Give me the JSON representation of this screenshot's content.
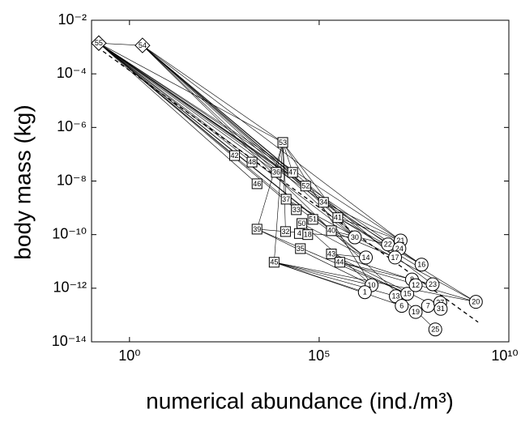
{
  "chart_data": {
    "type": "foodweb-scatter",
    "x_label": "numerical abundance (ind./m³)",
    "y_label": "body mass (kg)",
    "log_x": true,
    "log_y": true,
    "xlim": [
      0.1,
      10000000000.0
    ],
    "ylim": [
      1e-14,
      0.01
    ],
    "xticks": [
      {
        "value": 1,
        "label": "10⁰"
      },
      {
        "value": 100000,
        "label": "10⁵"
      },
      {
        "value": 10000000000.0,
        "label": "10¹⁰"
      }
    ],
    "yticks": [
      {
        "value": 1e-14,
        "label": "10⁻¹⁴"
      },
      {
        "value": 1e-12,
        "label": "10⁻¹²"
      },
      {
        "value": 1e-10,
        "label": "10⁻¹⁰"
      },
      {
        "value": 1e-08,
        "label": "10⁻⁸"
      },
      {
        "value": 1e-06,
        "label": "10⁻⁶"
      },
      {
        "value": 0.0001,
        "label": "10⁻⁴"
      },
      {
        "value": 0.01,
        "label": "10⁻²"
      }
    ],
    "color": "#000000",
    "nodes": [
      {
        "label": "55",
        "shape": "diamond",
        "x": 0.155,
        "y": 0.0014
      },
      {
        "label": "54",
        "shape": "diamond",
        "x": 2.2,
        "y": 0.00115
      },
      {
        "label": "53",
        "shape": "square",
        "x": 11000,
        "y": 2.75e-07
      },
      {
        "label": "42",
        "shape": "square",
        "x": 590,
        "y": 8.9e-08
      },
      {
        "label": "48",
        "shape": "square",
        "x": 1700,
        "y": 5.1e-08
      },
      {
        "label": "36",
        "shape": "square",
        "x": 7400,
        "y": 2.1e-08
      },
      {
        "label": "47",
        "shape": "square",
        "x": 20000,
        "y": 2.1e-08
      },
      {
        "label": "46",
        "shape": "square",
        "x": 2300,
        "y": 7.9e-09
      },
      {
        "label": "52",
        "shape": "square",
        "x": 44000,
        "y": 6.5e-09
      },
      {
        "label": "37",
        "shape": "square",
        "x": 13500,
        "y": 2.1e-09
      },
      {
        "label": "34",
        "shape": "square",
        "x": 130000,
        "y": 1.6e-09
      },
      {
        "label": "33",
        "shape": "square",
        "x": 25000,
        "y": 8.5e-10
      },
      {
        "label": "50",
        "shape": "square",
        "x": 35000,
        "y": 2.6e-10
      },
      {
        "label": "51",
        "shape": "square",
        "x": 68000,
        "y": 3.7e-10
      },
      {
        "label": "41",
        "shape": "square",
        "x": 310000,
        "y": 4.3e-10
      },
      {
        "label": "39",
        "shape": "square",
        "x": 2300,
        "y": 1.6e-10
      },
      {
        "label": "32",
        "shape": "square",
        "x": 13000,
        "y": 1.3e-10
      },
      {
        "label": "4",
        "shape": "square",
        "x": 30000,
        "y": 1.1e-10
      },
      {
        "label": "18",
        "shape": "square",
        "x": 50000,
        "y": 1e-10
      },
      {
        "label": "40",
        "shape": "square",
        "x": 210000,
        "y": 1.4e-10
      },
      {
        "label": "35",
        "shape": "square",
        "x": 32000,
        "y": 3e-11
      },
      {
        "label": "43",
        "shape": "square",
        "x": 210000,
        "y": 1.9e-11
      },
      {
        "label": "44",
        "shape": "square",
        "x": 350000,
        "y": 9.3e-12
      },
      {
        "label": "45",
        "shape": "square",
        "x": 6500,
        "y": 9.3e-12
      },
      {
        "label": "30",
        "shape": "circle",
        "x": 870000,
        "y": 7.9e-11
      },
      {
        "label": "22",
        "shape": "circle",
        "x": 6500000,
        "y": 4.3e-11
      },
      {
        "label": "21",
        "shape": "circle",
        "x": 14000000,
        "y": 6e-11
      },
      {
        "label": "24",
        "shape": "circle",
        "x": 13000000,
        "y": 3e-11
      },
      {
        "label": "17",
        "shape": "circle",
        "x": 10000000,
        "y": 1.4e-11
      },
      {
        "label": "14",
        "shape": "circle",
        "x": 1700000,
        "y": 1.4e-11
      },
      {
        "label": "16",
        "shape": "circle",
        "x": 50000000,
        "y": 7.6e-12
      },
      {
        "label": "10",
        "shape": "circle",
        "x": 2400000,
        "y": 1.3e-12
      },
      {
        "label": "1",
        "shape": "circle",
        "x": 1600000,
        "y": 7.1e-13
      },
      {
        "label": "23",
        "shape": "circle",
        "x": 98000000,
        "y": 1.4e-12
      },
      {
        "label": "20",
        "shape": "circle",
        "x": 1350000000,
        "y": 3.1e-13
      },
      {
        "label": "13",
        "shape": "circle",
        "x": 10500000,
        "y": 5e-13
      },
      {
        "label": "15",
        "shape": "circle",
        "x": 21000000,
        "y": 6.2e-13
      },
      {
        "label": "8",
        "shape": "circle",
        "x": 28000000,
        "y": 2.1e-12
      },
      {
        "label": "12",
        "shape": "circle",
        "x": 35000000,
        "y": 1.3e-12
      },
      {
        "label": "6",
        "shape": "circle",
        "x": 15000000,
        "y": 2.2e-13
      },
      {
        "label": "7",
        "shape": "circle",
        "x": 74000000,
        "y": 2.2e-13
      },
      {
        "label": "27",
        "shape": "circle",
        "x": 155000000,
        "y": 2.9e-13
      },
      {
        "label": "31",
        "shape": "circle",
        "x": 160000000,
        "y": 1.7e-13
      },
      {
        "label": "19",
        "shape": "circle",
        "x": 35000000,
        "y": 1.3e-13
      },
      {
        "label": "25",
        "shape": "circle",
        "x": 115000000,
        "y": 2.9e-14
      }
    ],
    "links": [
      [
        0,
        1
      ],
      [
        0,
        2
      ],
      [
        0,
        3
      ],
      [
        0,
        4
      ],
      [
        0,
        5
      ],
      [
        0,
        6
      ],
      [
        0,
        7
      ],
      [
        0,
        8
      ],
      [
        0,
        9
      ],
      [
        0,
        10
      ],
      [
        0,
        11
      ],
      [
        0,
        19
      ],
      [
        0,
        24
      ],
      [
        0,
        25
      ],
      [
        0,
        26
      ],
      [
        0,
        29
      ],
      [
        0,
        30
      ],
      [
        1,
        2
      ],
      [
        1,
        5
      ],
      [
        1,
        6
      ],
      [
        1,
        8
      ],
      [
        1,
        10
      ],
      [
        1,
        14
      ],
      [
        1,
        19
      ],
      [
        1,
        24
      ],
      [
        1,
        26
      ],
      [
        1,
        28
      ],
      [
        2,
        5
      ],
      [
        2,
        6
      ],
      [
        2,
        9
      ],
      [
        2,
        15
      ],
      [
        2,
        16
      ],
      [
        2,
        23
      ],
      [
        2,
        24
      ],
      [
        2,
        31
      ],
      [
        15,
        24
      ],
      [
        15,
        31
      ],
      [
        15,
        36
      ],
      [
        23,
        31
      ],
      [
        23,
        32
      ],
      [
        23,
        35
      ],
      [
        23,
        39
      ],
      [
        23,
        34
      ],
      [
        10,
        24
      ],
      [
        10,
        26
      ],
      [
        10,
        30
      ],
      [
        10,
        33
      ],
      [
        14,
        26
      ],
      [
        14,
        30
      ],
      [
        14,
        34
      ],
      [
        22,
        33
      ],
      [
        22,
        34
      ],
      [
        22,
        36
      ],
      [
        21,
        29
      ],
      [
        21,
        37
      ],
      [
        21,
        42
      ],
      [
        19,
        25
      ],
      [
        19,
        28
      ],
      [
        19,
        44
      ],
      [
        12,
        29
      ],
      [
        12,
        31
      ],
      [
        9,
        29
      ],
      [
        9,
        34
      ]
    ],
    "fit_line": {
      "x": [
        0.14,
        1550000000
      ],
      "y": [
        0.001,
        5.4e-14
      ]
    }
  }
}
